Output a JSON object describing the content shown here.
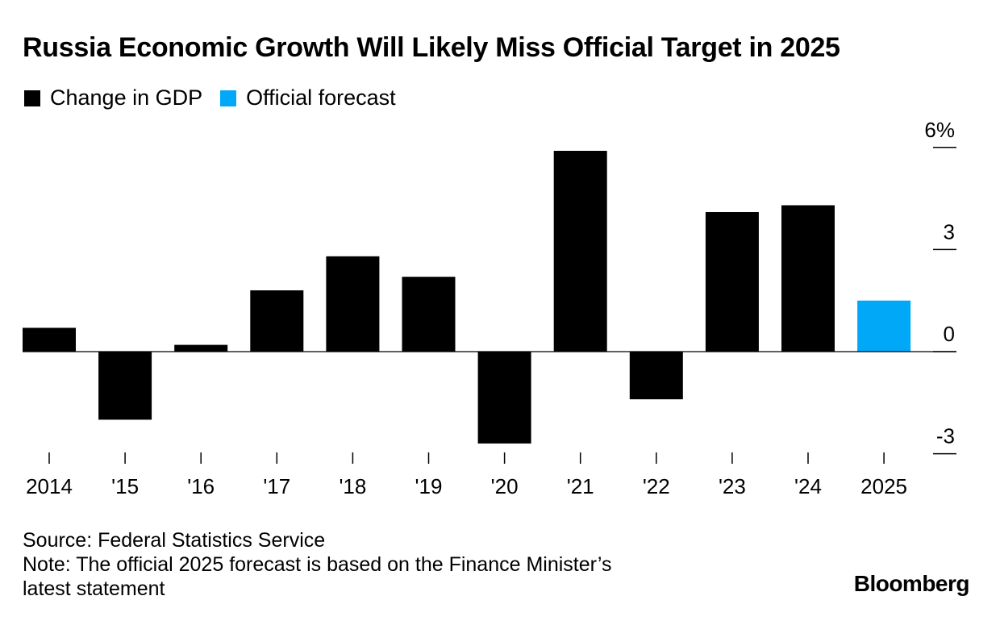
{
  "chart_data": {
    "type": "bar",
    "title": "Russia Economic Growth Will Likely Miss Official Target in 2025",
    "categories": [
      "2014",
      "'15",
      "'16",
      "'17",
      "'18",
      "'19",
      "'20",
      "'21",
      "'22",
      "'23",
      "'24",
      "2025"
    ],
    "series": [
      {
        "name": "Change in GDP",
        "color": "#000000",
        "values": [
          0.7,
          -2.0,
          0.2,
          1.8,
          2.8,
          2.2,
          -2.7,
          5.9,
          -1.4,
          4.1,
          4.3,
          null
        ]
      },
      {
        "name": "Official forecast",
        "color": "#00a8f7",
        "values": [
          null,
          null,
          null,
          null,
          null,
          null,
          null,
          null,
          null,
          null,
          null,
          1.5
        ]
      }
    ],
    "ylim": [
      -3,
      6
    ],
    "yticks": [
      6,
      3,
      0,
      -3
    ],
    "ytick_labels": [
      "6%",
      "3",
      "0",
      "-3"
    ],
    "y_axis_side": "right",
    "grid": false,
    "legend_position": "top-left"
  },
  "footer": {
    "source": "Source: Federal Statistics Service",
    "note_line1": "Note: The official 2025 forecast is based on the Finance Minister’s",
    "note_line2": "latest statement",
    "brand": "Bloomberg"
  }
}
